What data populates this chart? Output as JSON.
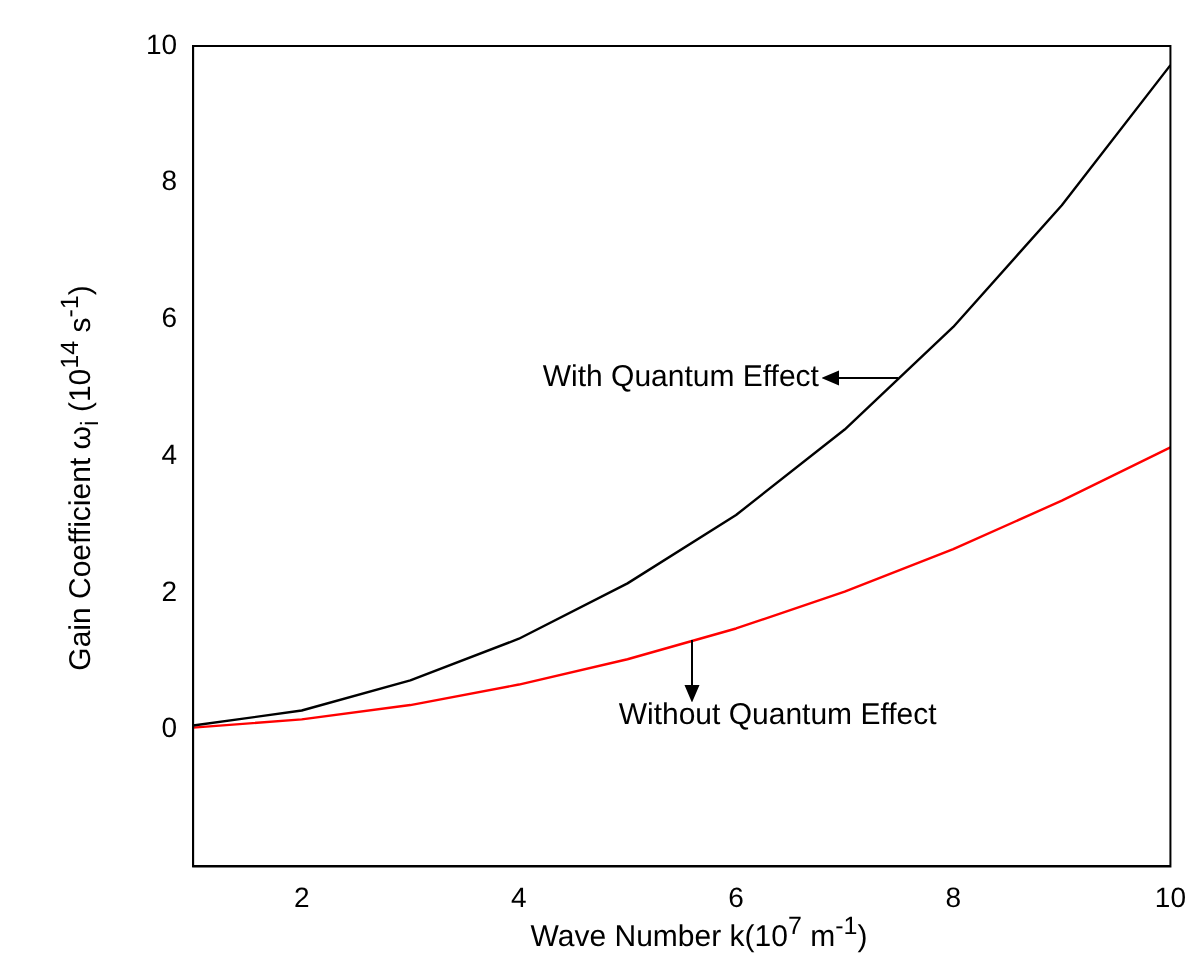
{
  "chart_data": {
    "type": "line",
    "xlabel": "Wave Number k(10$^{7}$ m$^{-1}$)",
    "ylabel": "Gain Coefficient ω$_{i}$ (10$^{14}$ s$^{-1}$)",
    "x": [
      1,
      2,
      3,
      4,
      5,
      6,
      7,
      8,
      9,
      10
    ],
    "series": [
      {
        "color": "#000000",
        "values": [
          0.06,
          0.28,
          0.72,
          1.33,
          2.14,
          3.14,
          4.39,
          5.89,
          7.67,
          9.72
        ]
      },
      {
        "color": "#ff0000",
        "values": [
          0.03,
          0.15,
          0.36,
          0.66,
          1.03,
          1.48,
          2.02,
          2.64,
          3.35,
          4.13
        ]
      }
    ],
    "xlim": [
      1,
      10
    ],
    "xticks": [
      2,
      4,
      6,
      8,
      10
    ],
    "ylim": [
      -2,
      10
    ],
    "yticks": [
      0,
      2,
      4,
      6,
      8,
      10
    ],
    "annotations": [
      {
        "text": "With Quantum Effect",
        "x": 7.5,
        "y": 5.15
      },
      {
        "text": "Without Quantum Effect",
        "x": 5.6,
        "y": 1.3
      }
    ],
    "grid": false,
    "legend": false,
    "marker": "none",
    "line_style": "solid"
  }
}
